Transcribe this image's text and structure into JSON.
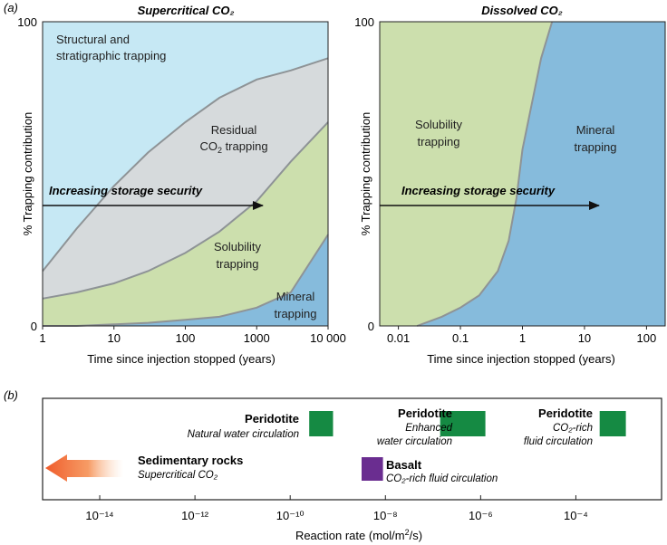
{
  "panel_a_label": "(a)",
  "panel_b_label": "(b)",
  "chart_data": [
    {
      "type": "area",
      "title": "Supercritical CO₂",
      "xlabel": "Time since injection stopped (years)",
      "ylabel": "% Trapping contribution",
      "x_scale": "log",
      "xlim": [
        1,
        10000
      ],
      "ylim": [
        0,
        100
      ],
      "x_ticks": [
        "1",
        "10",
        "100",
        "1000",
        "10 000"
      ],
      "y_ticks": [
        "0",
        "100"
      ],
      "boundaries": {
        "x": [
          1,
          3,
          10,
          30,
          100,
          300,
          1000,
          3000,
          10000
        ],
        "residual_top": [
          18,
          32,
          46,
          57,
          67,
          75,
          81,
          84,
          88
        ],
        "solubility_top": [
          9,
          11,
          14,
          18,
          24,
          31,
          41,
          54,
          67
        ],
        "mineral_top": [
          0,
          0,
          0.5,
          1,
          2,
          3,
          6,
          11,
          30
        ]
      },
      "regions": [
        {
          "name": "Structural and stratigraphic trapping",
          "color": "#c6e8f4"
        },
        {
          "name": "Residual CO₂ trapping",
          "color": "#d6dadc"
        },
        {
          "name": "Solubility trapping",
          "color": "#ccdfad"
        },
        {
          "name": "Mineral trapping",
          "color": "#86bbdc"
        }
      ],
      "labels": {
        "structural_1": "Structural and",
        "structural_2": "stratigraphic trapping",
        "residual_1": "Residual",
        "residual_2": "CO",
        "residual_sub": "2",
        "residual_3": " trapping",
        "solubility_1": "Solubility",
        "solubility_2": "trapping",
        "mineral_1": "Mineral",
        "mineral_2": "trapping"
      },
      "arrow_label": "Increasing storage security"
    },
    {
      "type": "area",
      "title": "Dissolved CO₂",
      "xlabel": "Time since injection stopped (years)",
      "ylabel": "% Trapping contribution",
      "x_scale": "log",
      "xlim": [
        0.005,
        200
      ],
      "ylim": [
        0,
        100
      ],
      "x_ticks": [
        "0.01",
        "0.1",
        "1",
        "10",
        "100"
      ],
      "y_ticks": [
        "0",
        "100"
      ],
      "boundaries": {
        "x": [
          0.005,
          0.01,
          0.02,
          0.05,
          0.1,
          0.2,
          0.4,
          0.6,
          0.8,
          1,
          2,
          3
        ],
        "solubility_top": [
          100,
          100,
          100,
          100,
          100,
          100,
          100,
          100,
          100,
          100,
          100,
          100
        ],
        "mineral_top": [
          0,
          0,
          0,
          3,
          6,
          10,
          18,
          28,
          42,
          58,
          88,
          100
        ]
      },
      "regions": [
        {
          "name": "Solubility trapping",
          "color": "#ccdfad"
        },
        {
          "name": "Mineral trapping",
          "color": "#86bbdc"
        }
      ],
      "labels": {
        "solubility_1": "Solubility",
        "solubility_2": "trapping",
        "mineral_1": "Mineral",
        "mineral_2": "trapping"
      },
      "arrow_label": "Increasing storage security"
    },
    {
      "type": "bar",
      "xlabel": "Reaction rate (mol/m²/s)",
      "x_scale": "log",
      "xlim": [
        -15.2,
        -2.2
      ],
      "x_ticks": [
        "10⁻¹⁴",
        "10⁻¹²",
        "10⁻¹⁰",
        "10⁻⁸",
        "10⁻⁶",
        "10⁻⁴"
      ],
      "x_tick_exponents": [
        -14,
        -12,
        -10,
        -8,
        -6,
        -4
      ],
      "items": [
        {
          "label": "Peridotite",
          "sublabel": "Natural water circulation",
          "log_min": -9.6,
          "log_max": -9.1,
          "row": 1,
          "color": "#158a43"
        },
        {
          "label": "Peridotite",
          "sublabel_1": "Enhanced",
          "sublabel_2": "water circulation",
          "log_min": -6.85,
          "log_max": -5.9,
          "row": 1,
          "color": "#158a43"
        },
        {
          "label": "Peridotite",
          "sublabel_1": "CO₂-rich",
          "sublabel_2": "fluid circulation",
          "log_min": -3.5,
          "log_max": -2.95,
          "row": 1,
          "color": "#158a43"
        },
        {
          "label": "Basalt",
          "sublabel": "CO₂-rich fluid circulation",
          "log_min": -8.5,
          "log_max": -8.05,
          "row": 2,
          "color": "#6a2d90"
        },
        {
          "label": "Sedimentary rocks",
          "sublabel": "Supercritical CO₂",
          "log_max": -13.3,
          "row": 2,
          "color": "#ef5a2a",
          "note": "arrow pointing toward slower rates"
        }
      ]
    }
  ]
}
